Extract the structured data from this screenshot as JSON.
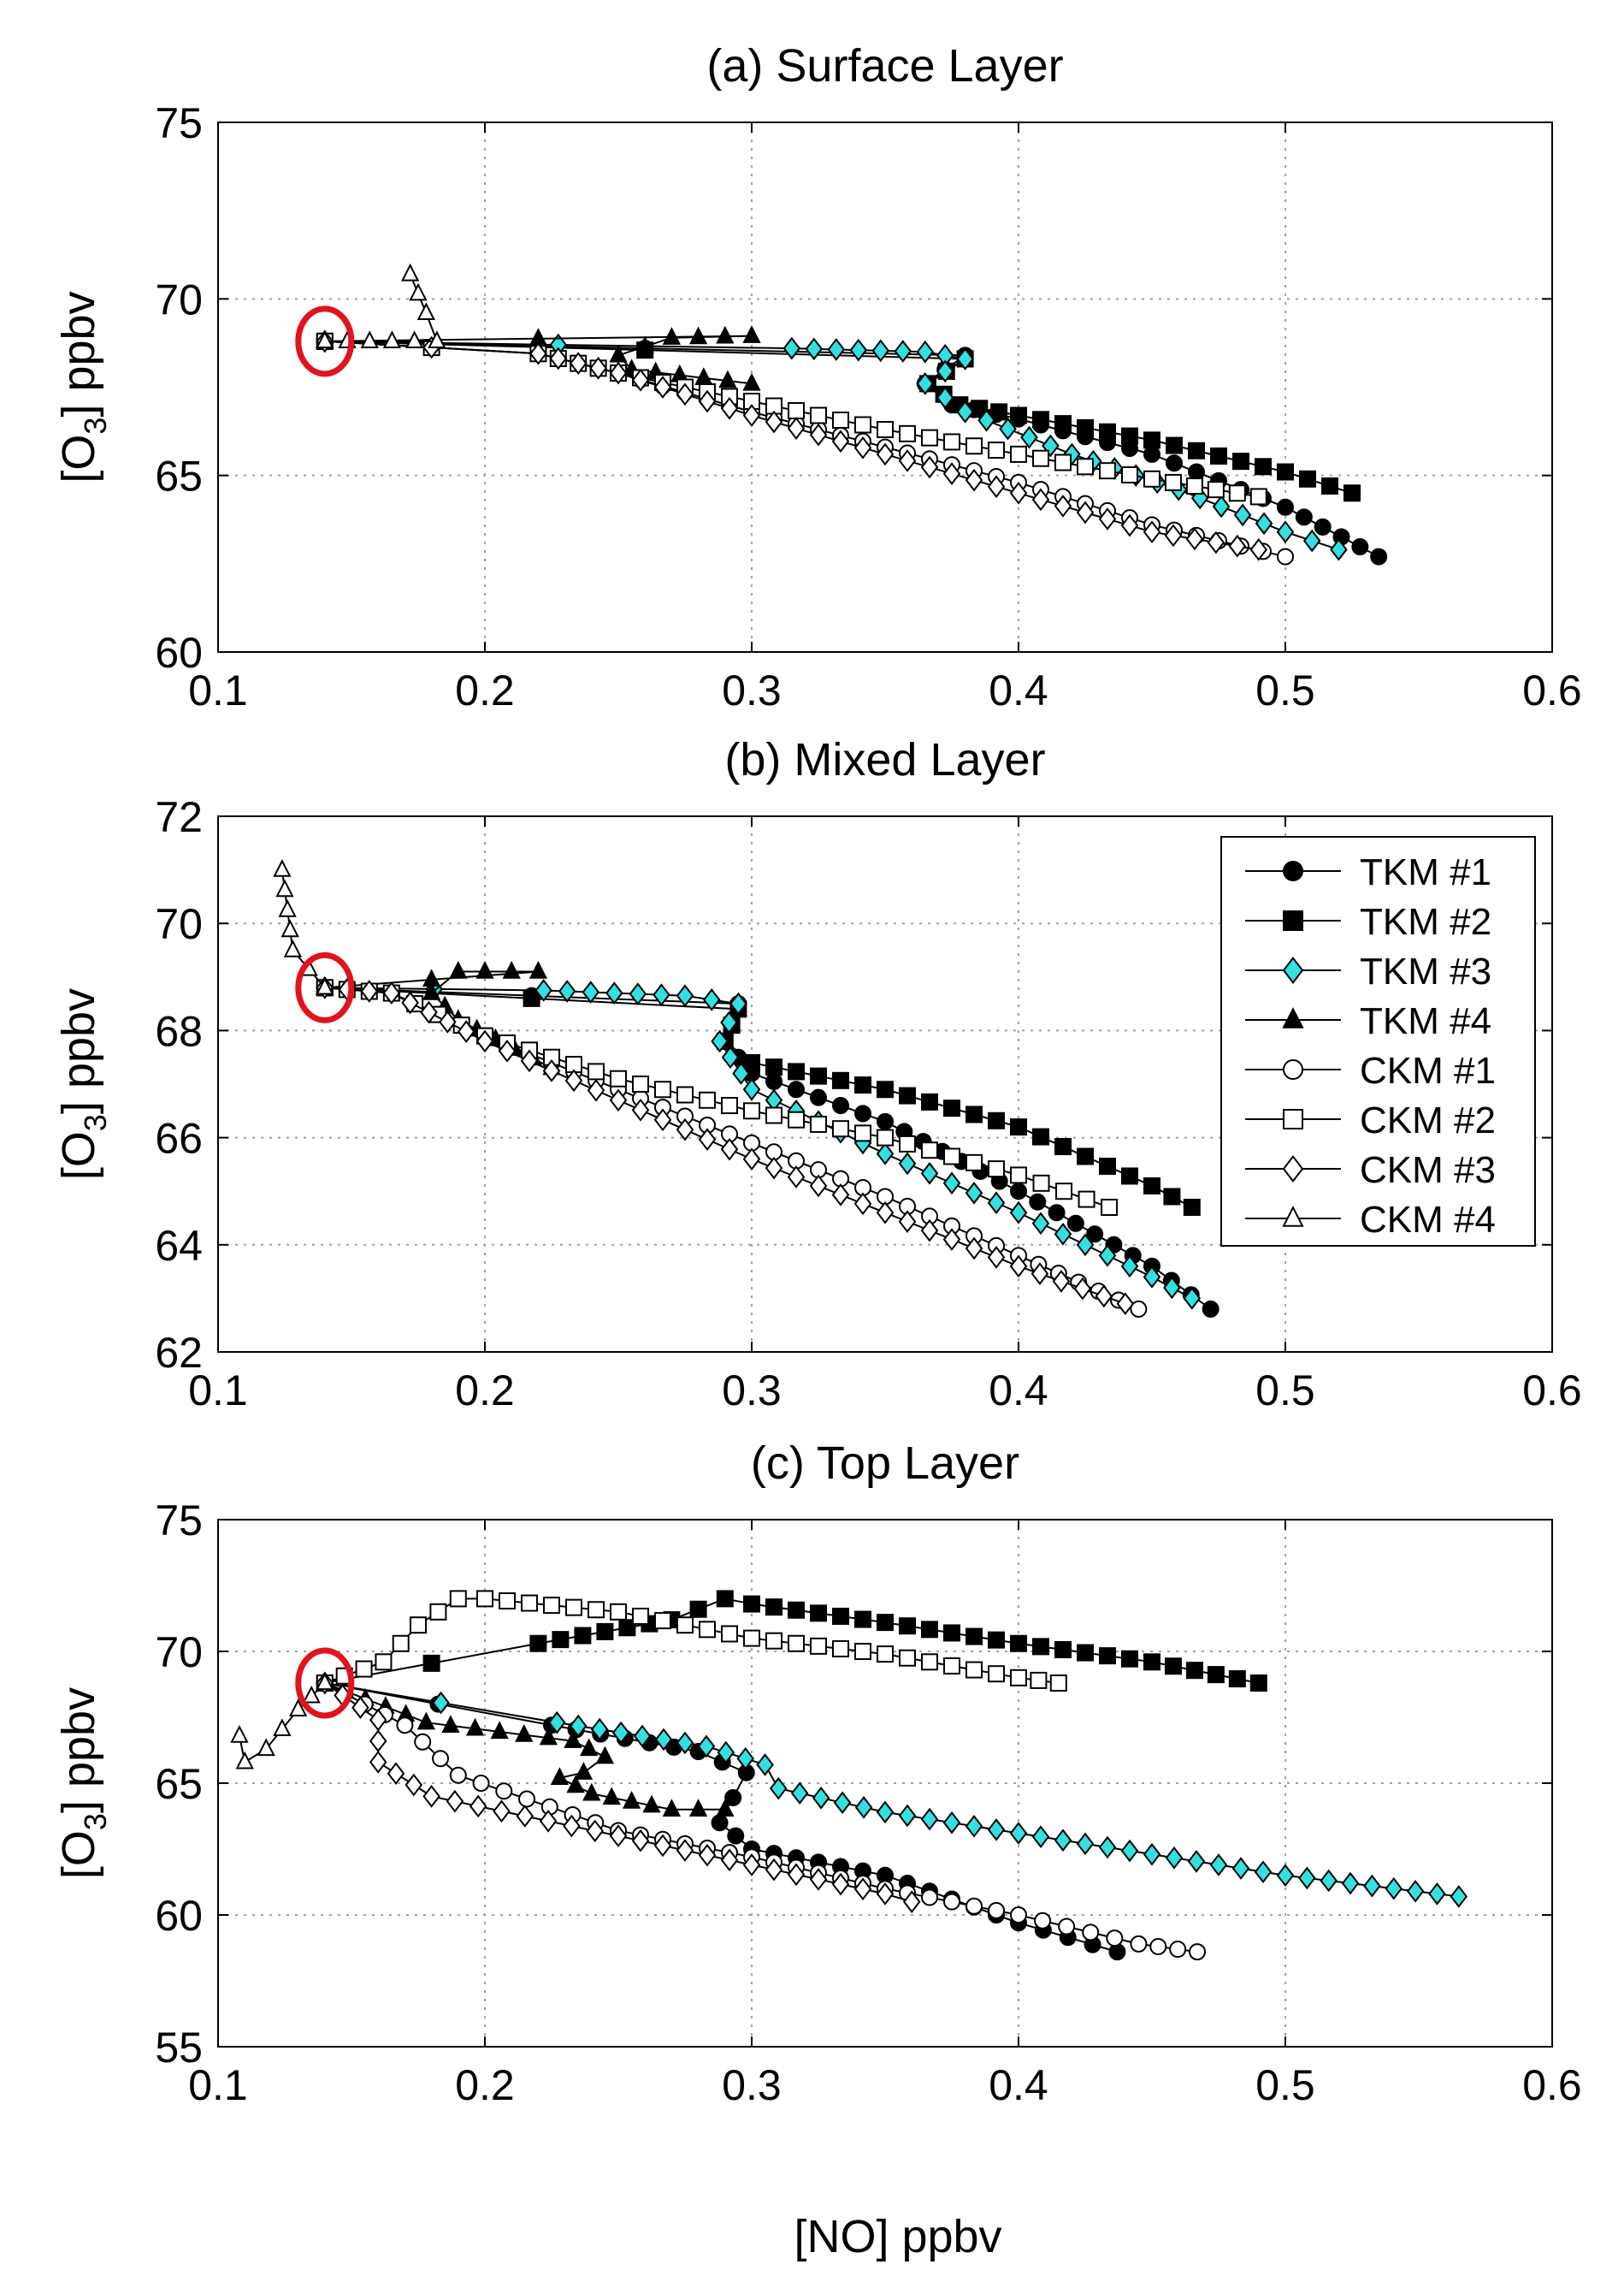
{
  "figure": {
    "xlabel": "[NO] ppbv"
  },
  "colors": {
    "black": "#000000",
    "cyan": "#33e0e0",
    "highlight": "#e0141e",
    "grid": "#a0a0a0"
  },
  "legend": {
    "panel": 1,
    "entries": [
      {
        "label": "TKM #1",
        "marker": "circle",
        "fill": "filled"
      },
      {
        "label": "TKM #2",
        "marker": "square",
        "fill": "filled"
      },
      {
        "label": "TKM #3",
        "marker": "diamond",
        "fill": "cyan"
      },
      {
        "label": "TKM #4",
        "marker": "triangle",
        "fill": "filled"
      },
      {
        "label": "CKM #1",
        "marker": "circle",
        "fill": "open"
      },
      {
        "label": "CKM #2",
        "marker": "square",
        "fill": "open"
      },
      {
        "label": "CKM #3",
        "marker": "diamond",
        "fill": "open"
      },
      {
        "label": "CKM #4",
        "marker": "triangle",
        "fill": "open"
      }
    ]
  },
  "chart_data": [
    {
      "type": "line",
      "title": "(a) Surface Layer",
      "xlabel": "",
      "ylabel_pre": "[O",
      "ylabel_sub": "3",
      "ylabel_post": "] ppbv",
      "xlim": [
        0.1,
        0.6
      ],
      "ylim": [
        60,
        75
      ],
      "xticks": [
        0.1,
        0.2,
        0.3,
        0.4,
        0.5,
        0.6
      ],
      "yticks": [
        60,
        65,
        70,
        75
      ],
      "grid": true,
      "highlight": {
        "x": 0.14,
        "y": 68.8
      },
      "series": [
        {
          "name": "TKM #1",
          "x": [
            0.14,
            0.38,
            0.365,
            0.375,
            0.4,
            0.45,
            0.5,
            0.535
          ],
          "y": [
            68.8,
            68.4,
            67.6,
            67.0,
            66.6,
            65.6,
            64.1,
            62.7
          ]
        },
        {
          "name": "TKM #2",
          "x": [
            0.14,
            0.38,
            0.366,
            0.378,
            0.4,
            0.45,
            0.5,
            0.525
          ],
          "y": [
            68.8,
            68.3,
            67.6,
            67.0,
            66.7,
            66.0,
            65.1,
            64.5
          ]
        },
        {
          "name": "TKM #3",
          "x": [
            0.14,
            0.315,
            0.365,
            0.38,
            0.365,
            0.38,
            0.42,
            0.46,
            0.5,
            0.52
          ],
          "y": [
            68.8,
            68.6,
            68.5,
            68.3,
            67.6,
            66.8,
            65.6,
            64.6,
            63.4,
            62.9
          ]
        },
        {
          "name": "TKM #4",
          "x": [
            0.14,
            0.3,
            0.27,
            0.25,
            0.255,
            0.3
          ],
          "y": [
            68.8,
            68.95,
            68.9,
            68.4,
            68.0,
            67.6
          ]
        },
        {
          "name": "CKM #1",
          "x": [
            0.14,
            0.22,
            0.25,
            0.3,
            0.35,
            0.4,
            0.45,
            0.5
          ],
          "y": [
            68.8,
            68.45,
            67.9,
            66.8,
            65.8,
            64.8,
            63.6,
            62.7
          ]
        },
        {
          "name": "CKM #2",
          "x": [
            0.14,
            0.22,
            0.25,
            0.3,
            0.35,
            0.4,
            0.45,
            0.49
          ],
          "y": [
            68.8,
            68.45,
            67.9,
            67.1,
            66.3,
            65.6,
            64.9,
            64.4
          ]
        },
        {
          "name": "CKM #3",
          "x": [
            0.14,
            0.22,
            0.25,
            0.3,
            0.35,
            0.4,
            0.45,
            0.49
          ],
          "y": [
            68.8,
            68.45,
            67.9,
            66.7,
            65.6,
            64.5,
            63.4,
            62.9
          ]
        },
        {
          "name": "CKM #4",
          "x": [
            0.14,
            0.182,
            0.178,
            0.172
          ],
          "y": [
            68.8,
            68.8,
            69.6,
            70.7
          ]
        }
      ]
    },
    {
      "type": "line",
      "title": "(b) Mixed Layer",
      "xlabel": "",
      "ylabel_pre": "[O",
      "ylabel_sub": "3",
      "ylabel_post": "] ppbv",
      "xlim": [
        0.1,
        0.6
      ],
      "ylim": [
        62,
        72
      ],
      "xticks": [
        0.1,
        0.2,
        0.3,
        0.4,
        0.5,
        0.6
      ],
      "yticks": [
        62,
        64,
        66,
        68,
        70,
        72
      ],
      "grid": true,
      "highlight": {
        "x": 0.14,
        "y": 68.8
      },
      "series": [
        {
          "name": "TKM #1",
          "x": [
            0.14,
            0.295,
            0.29,
            0.3,
            0.35,
            0.4,
            0.45,
            0.472
          ],
          "y": [
            68.8,
            68.5,
            67.8,
            67.2,
            66.3,
            65.0,
            63.6,
            62.8
          ]
        },
        {
          "name": "TKM #2",
          "x": [
            0.14,
            0.295,
            0.29,
            0.3,
            0.35,
            0.4,
            0.45,
            0.465
          ],
          "y": [
            68.8,
            68.4,
            67.8,
            67.4,
            66.9,
            66.2,
            65.1,
            64.7
          ]
        },
        {
          "name": "TKM #3",
          "x": [
            0.14,
            0.222,
            0.275,
            0.295,
            0.288,
            0.3,
            0.35,
            0.4,
            0.45,
            0.465
          ],
          "y": [
            68.8,
            68.75,
            68.65,
            68.5,
            67.8,
            66.9,
            65.7,
            64.6,
            63.4,
            63.0
          ]
        },
        {
          "name": "TKM #4",
          "x": [
            0.14,
            0.22,
            0.19,
            0.18,
            0.19,
            0.225
          ],
          "y": [
            68.8,
            69.1,
            69.1,
            68.7,
            68.2,
            67.3
          ]
        },
        {
          "name": "CKM #1",
          "x": [
            0.14,
            0.165,
            0.2,
            0.25,
            0.3,
            0.35,
            0.4,
            0.445
          ],
          "y": [
            68.8,
            68.7,
            67.9,
            66.9,
            65.9,
            64.9,
            63.8,
            62.8
          ]
        },
        {
          "name": "CKM #2",
          "x": [
            0.14,
            0.165,
            0.2,
            0.25,
            0.3,
            0.35,
            0.4,
            0.434
          ],
          "y": [
            68.8,
            68.7,
            67.9,
            67.1,
            66.5,
            66.0,
            65.3,
            64.7
          ]
        },
        {
          "name": "CKM #3",
          "x": [
            0.14,
            0.165,
            0.2,
            0.25,
            0.3,
            0.35,
            0.4,
            0.44
          ],
          "y": [
            68.8,
            68.7,
            67.8,
            66.7,
            65.6,
            64.6,
            63.6,
            62.9
          ]
        },
        {
          "name": "CKM #4",
          "x": [
            0.14,
            0.128,
            0.124
          ],
          "y": [
            68.8,
            69.5,
            71.0
          ]
        }
      ]
    },
    {
      "type": "line",
      "title": "(c) Top Layer",
      "xlabel": "[NO] ppbv",
      "ylabel_pre": "[O",
      "ylabel_sub": "3",
      "ylabel_post": "] ppbv",
      "xlim": [
        0.1,
        0.6
      ],
      "ylim": [
        55,
        75
      ],
      "xticks": [
        0.1,
        0.2,
        0.3,
        0.4,
        0.5,
        0.6
      ],
      "yticks": [
        55,
        60,
        65,
        70,
        75
      ],
      "grid": true,
      "highlight": {
        "x": 0.14,
        "y": 68.8
      },
      "series": [
        {
          "name": "TKM #1",
          "x": [
            0.14,
            0.225,
            0.28,
            0.298,
            0.288,
            0.3,
            0.35,
            0.4,
            0.437
          ],
          "y": [
            68.8,
            67.2,
            66.2,
            65.4,
            63.5,
            62.5,
            61.5,
            59.7,
            58.6
          ]
        },
        {
          "name": "TKM #2",
          "x": [
            0.14,
            0.22,
            0.27,
            0.29,
            0.3,
            0.35,
            0.4,
            0.45,
            0.49
          ],
          "y": [
            68.8,
            70.3,
            71.2,
            72.0,
            71.8,
            71.1,
            70.3,
            69.6,
            68.8
          ]
        },
        {
          "name": "TKM #3",
          "x": [
            0.14,
            0.227,
            0.283,
            0.305,
            0.31,
            0.35,
            0.4,
            0.45,
            0.5,
            0.565
          ],
          "y": [
            68.8,
            67.3,
            66.4,
            65.7,
            64.8,
            63.9,
            63.1,
            62.3,
            61.5,
            60.7
          ]
        },
        {
          "name": "TKM #4",
          "x": [
            0.14,
            0.178,
            0.233,
            0.245,
            0.237,
            0.228,
            0.24,
            0.27,
            0.29
          ],
          "y": [
            68.8,
            67.3,
            66.6,
            66.0,
            65.4,
            65.2,
            64.6,
            64.0,
            64.0
          ]
        },
        {
          "name": "CKM #1",
          "x": [
            0.14,
            0.17,
            0.19,
            0.25,
            0.3,
            0.35,
            0.4,
            0.445,
            0.467
          ],
          "y": [
            68.8,
            67.2,
            65.3,
            63.2,
            62.2,
            61.0,
            60.0,
            58.9,
            58.6
          ]
        },
        {
          "name": "CKM #2",
          "x": [
            0.14,
            0.162,
            0.175,
            0.19,
            0.2,
            0.25,
            0.3,
            0.35,
            0.4,
            0.415
          ],
          "y": [
            68.8,
            69.6,
            71.0,
            72.0,
            72.0,
            71.5,
            70.5,
            69.9,
            69.0,
            68.8
          ]
        },
        {
          "name": "CKM #3",
          "x": [
            0.14,
            0.16,
            0.16,
            0.18,
            0.25,
            0.3,
            0.35,
            0.36
          ],
          "y": [
            68.8,
            67.4,
            65.8,
            64.5,
            63.0,
            61.9,
            60.8,
            60.5
          ]
        },
        {
          "name": "CKM #4",
          "x": [
            0.14,
            0.13,
            0.118,
            0.11,
            0.108
          ],
          "y": [
            68.8,
            67.8,
            66.3,
            65.8,
            66.8
          ]
        }
      ]
    }
  ]
}
